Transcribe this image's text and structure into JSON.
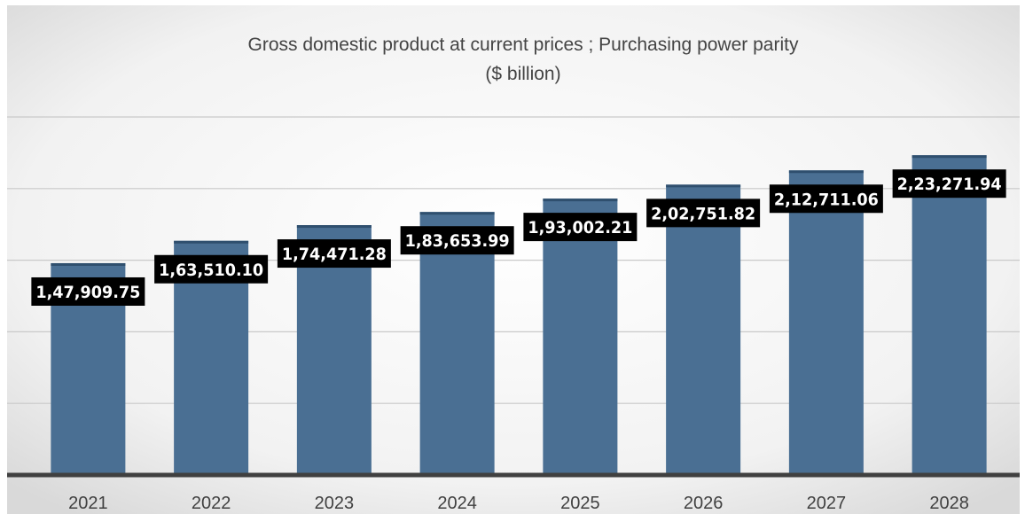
{
  "chart_data": {
    "type": "bar",
    "title": "Gross domestic product at current prices ; Purchasing power parity",
    "subtitle": "($ billion)",
    "categories": [
      "2021",
      "2022",
      "2023",
      "2024",
      "2025",
      "2026",
      "2027",
      "2028"
    ],
    "values": [
      147909.75,
      163510.1,
      174471.28,
      183653.99,
      193002.21,
      202751.82,
      212711.06,
      223271.94
    ],
    "data_labels": [
      "1,47,909.75",
      "1,63,510.10",
      "1,74,471.28",
      "1,83,653.99",
      "1,93,002.21",
      "2,02,751.82",
      "2,12,711.06",
      "2,23,271.94"
    ],
    "ylim": [
      0,
      250000
    ],
    "grid": true,
    "legend": "none",
    "colors": {
      "bar": "#4a6f93",
      "bar_top": "#2f4f6e",
      "label_bg": "#000000",
      "label_text": "#ffffff",
      "grid": "#c9c9c9",
      "axis": "#404040"
    }
  }
}
